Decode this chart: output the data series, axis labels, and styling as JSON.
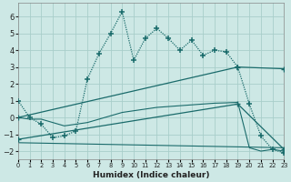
{
  "xlabel": "Humidex (Indice chaleur)",
  "bg_color": "#cde8e5",
  "grid_color": "#a8ceca",
  "line_color": "#1a6b6b",
  "x_min": 0,
  "x_max": 23,
  "y_min": -2.5,
  "y_max": 6.8,
  "y_ticks": [
    -2,
    -1,
    0,
    1,
    2,
    3,
    4,
    5,
    6
  ],
  "line1_x": [
    0,
    1,
    2,
    3,
    4,
    5,
    6,
    7,
    8,
    9,
    10,
    11,
    12,
    13,
    14,
    15,
    16,
    17,
    18,
    19,
    20,
    21,
    22,
    23
  ],
  "line1_y": [
    1.0,
    0.0,
    -0.4,
    -1.2,
    -1.1,
    -0.8,
    2.3,
    3.8,
    5.0,
    6.3,
    3.4,
    4.7,
    5.3,
    4.7,
    4.0,
    4.6,
    3.7,
    4.0,
    3.9,
    3.0,
    0.8,
    -1.1,
    -1.9,
    -2.1
  ],
  "line2_x": [
    0,
    1,
    2,
    3,
    4,
    5,
    6,
    7,
    8,
    9,
    10,
    11,
    12,
    13,
    14,
    15,
    16,
    17,
    18,
    19,
    20,
    21,
    22,
    23
  ],
  "line2_y": [
    0.0,
    -0.1,
    -0.1,
    -0.3,
    -0.5,
    -0.4,
    -0.3,
    -0.1,
    0.1,
    0.3,
    0.4,
    0.5,
    0.6,
    0.65,
    0.7,
    0.75,
    0.8,
    0.85,
    0.87,
    0.9,
    -1.8,
    -2.0,
    -1.9,
    -2.0
  ],
  "line3_x": [
    0,
    19,
    23
  ],
  "line3_y": [
    0.0,
    3.0,
    2.9
  ],
  "line4_x": [
    0,
    19,
    23
  ],
  "line4_y": [
    -1.3,
    0.8,
    -1.9
  ],
  "line5_x": [
    0,
    23
  ],
  "line5_y": [
    -1.5,
    -1.8
  ]
}
